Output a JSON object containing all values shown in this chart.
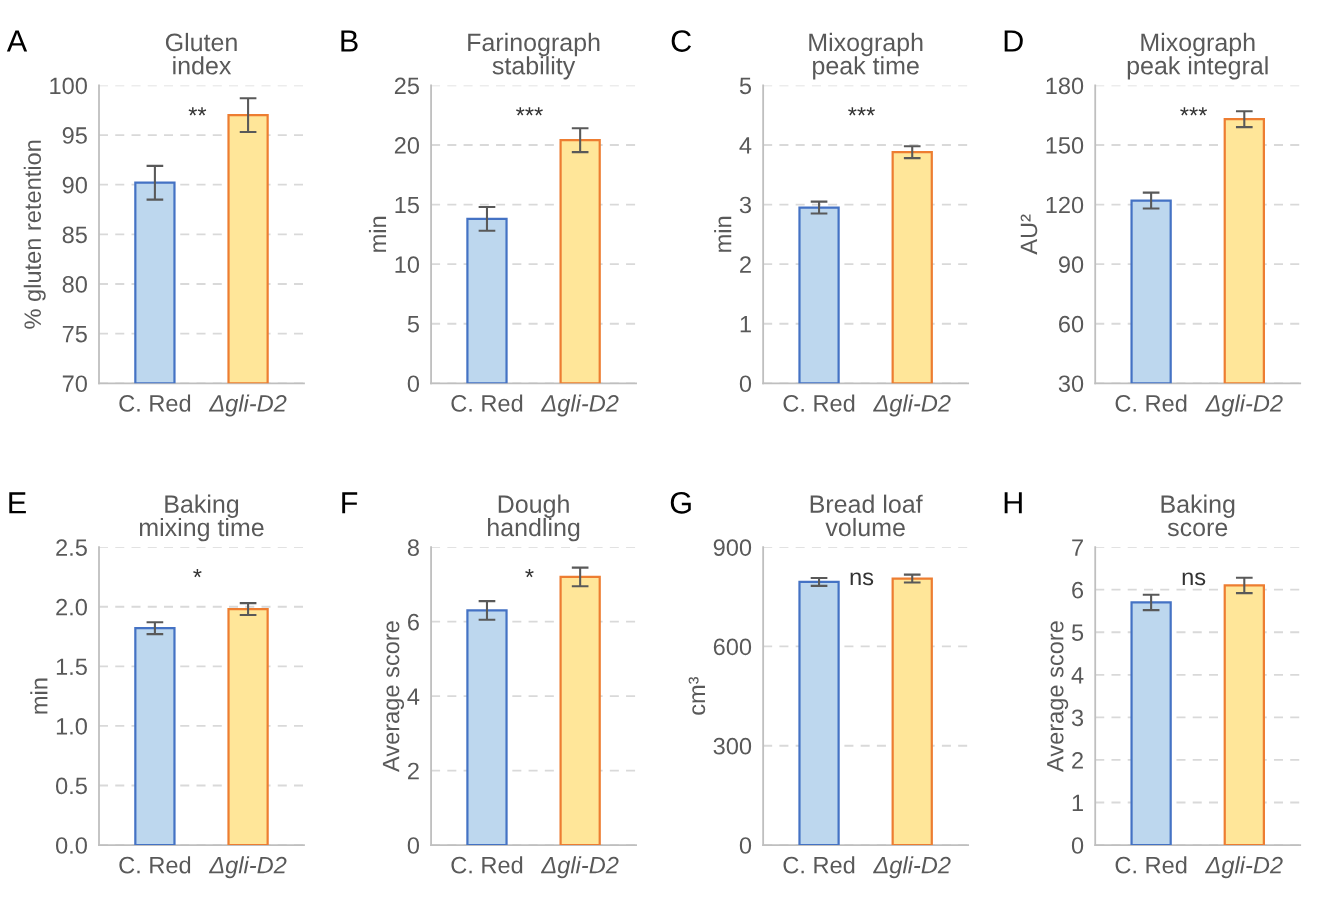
{
  "chart_data": [
    {
      "type": "bar",
      "title": "Gluten\nindex",
      "ylabel": "% gluten retention",
      "categories": [
        "C. Red",
        "Δgli-D2"
      ],
      "values": [
        90.2,
        97.0
      ],
      "errors": [
        1.7,
        1.7
      ],
      "colors": [
        "#bdd7ee",
        "#ffe699"
      ],
      "ylim": [
        70,
        100
      ],
      "yticks": [
        70,
        75,
        80,
        85,
        90,
        95,
        100
      ],
      "grid": "y",
      "annotations": [
        "A",
        "**"
      ]
    },
    {
      "type": "bar",
      "title": "Farinograph\nstability",
      "ylabel": "min",
      "categories": [
        "C. Red",
        "Δgli-D2"
      ],
      "values": [
        13.8,
        20.4
      ],
      "errors": [
        1.0,
        1.0
      ],
      "colors": [
        "#bdd7ee",
        "#ffe699"
      ],
      "ylim": [
        0,
        25
      ],
      "yticks": [
        0,
        5,
        10,
        15,
        20,
        25
      ],
      "grid": "y",
      "annotations": [
        "B",
        "***"
      ]
    },
    {
      "type": "bar",
      "title": "Mixograph\npeak time",
      "ylabel": "min",
      "categories": [
        "C. Red",
        "Δgli-D2"
      ],
      "values": [
        2.95,
        3.88
      ],
      "errors": [
        0.1,
        0.1
      ],
      "colors": [
        "#bdd7ee",
        "#ffe699"
      ],
      "ylim": [
        0,
        5
      ],
      "yticks": [
        0,
        1,
        2,
        3,
        4,
        5
      ],
      "grid": "y",
      "annotations": [
        "C",
        "***"
      ]
    },
    {
      "type": "bar",
      "title": "Mixograph\npeak integral",
      "ylabel": "AU²",
      "categories": [
        "C. Red",
        "Δgli-D2"
      ],
      "values": [
        122,
        163
      ],
      "errors": [
        4,
        4
      ],
      "colors": [
        "#bdd7ee",
        "#ffe699"
      ],
      "ylim": [
        30,
        180
      ],
      "yticks": [
        30,
        60,
        90,
        120,
        150,
        180
      ],
      "grid": "y",
      "annotations": [
        "D",
        "***"
      ]
    },
    {
      "type": "bar",
      "title": "Baking\nmixing time",
      "ylabel": "min",
      "categories": [
        "C. Red",
        "Δgli-D2"
      ],
      "values": [
        1.82,
        1.98
      ],
      "errors": [
        0.05,
        0.05
      ],
      "colors": [
        "#bdd7ee",
        "#ffe699"
      ],
      "ylim": [
        0,
        2.5
      ],
      "yticks": [
        {
          "value": 0,
          "label": "0.0"
        },
        0.5,
        {
          "value": 1,
          "label": "1.0"
        },
        1.5,
        {
          "value": 2,
          "label": "2.0"
        },
        2.5
      ],
      "grid": "y",
      "annotations": [
        "E",
        "*"
      ]
    },
    {
      "type": "bar",
      "title": "Dough\nhandling",
      "ylabel": "Average score",
      "categories": [
        "C. Red",
        "Δgli-D2"
      ],
      "values": [
        6.3,
        7.2
      ],
      "errors": [
        0.25,
        0.25
      ],
      "colors": [
        "#bdd7ee",
        "#ffe699"
      ],
      "ylim": [
        0,
        8
      ],
      "yticks": [
        0,
        2,
        4,
        6,
        8
      ],
      "grid": "y",
      "annotations": [
        "F",
        "*"
      ]
    },
    {
      "type": "bar",
      "title": "Bread loaf\nvolume",
      "ylabel": "cm³",
      "categories": [
        "C. Red",
        "Δgli-D2"
      ],
      "values": [
        795,
        805
      ],
      "errors": [
        12,
        12
      ],
      "colors": [
        "#bdd7ee",
        "#ffe699"
      ],
      "ylim": [
        0,
        900
      ],
      "yticks": [
        0,
        300,
        600,
        900
      ],
      "grid": "y",
      "annotations": [
        "G",
        "ns"
      ]
    },
    {
      "type": "bar",
      "title": "Baking\nscore",
      "ylabel": "Average score",
      "categories": [
        "C. Red",
        "Δgli-D2"
      ],
      "values": [
        5.7,
        6.1
      ],
      "errors": [
        0.18,
        0.18
      ],
      "colors": [
        "#bdd7ee",
        "#ffe699"
      ],
      "ylim": [
        0,
        7
      ],
      "yticks": [
        0,
        1,
        2,
        3,
        4,
        5,
        6,
        7
      ],
      "grid": "y",
      "annotations": [
        "H",
        "ns"
      ]
    }
  ]
}
